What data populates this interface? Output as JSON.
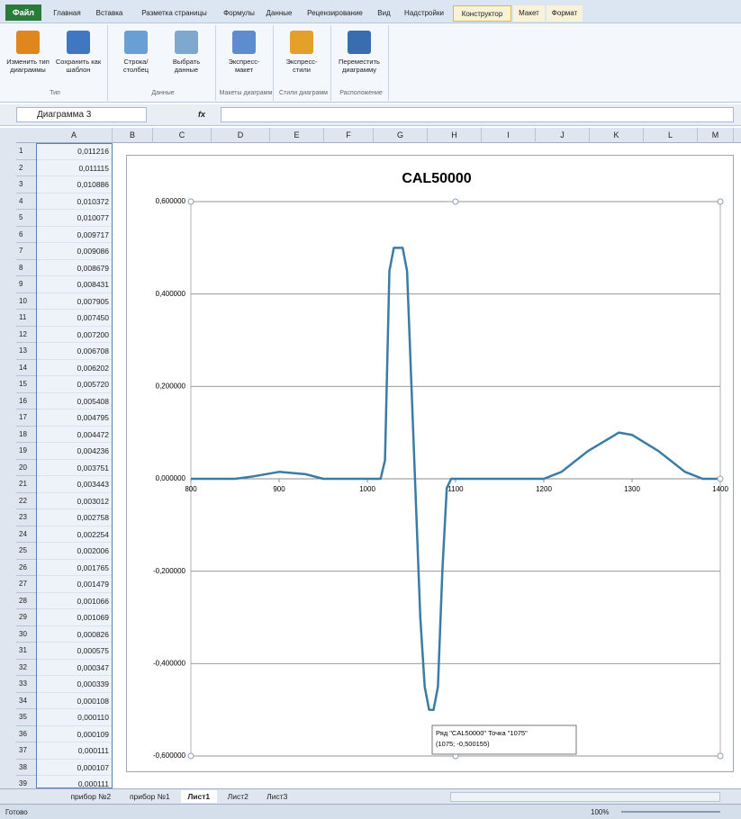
{
  "ribbon": {
    "file_tab": "Файл",
    "tabs": [
      "Главная",
      "Вставка",
      "Разметка страницы",
      "Формулы",
      "Данные",
      "Рецензирование",
      "Вид",
      "Надстройки",
      "Конструктор",
      "Макет",
      "Формат"
    ],
    "groups": [
      {
        "label": "Тип",
        "buttons": [
          "Изменить тип диаграммы",
          "Сохранить как шаблон"
        ]
      },
      {
        "label": "Данные",
        "buttons": [
          "Строка/столбец",
          "Выбрать данные"
        ]
      },
      {
        "label": "Макеты диаграмм",
        "buttons": [
          "Экспресс-макет"
        ]
      },
      {
        "label": "Стили диаграмм",
        "buttons": [
          "Экспресс-стили"
        ]
      },
      {
        "label": "Расположение",
        "buttons": [
          "Переместить диаграмму"
        ]
      }
    ]
  },
  "name_box": "Диаграмма 3",
  "formula_icon": "fx",
  "columns": [
    "A",
    "B",
    "C",
    "D",
    "E",
    "F",
    "G",
    "H",
    "I",
    "J",
    "K",
    "L",
    "M"
  ],
  "row_numbers": [
    1,
    2,
    3,
    4,
    5,
    6,
    7,
    8,
    9,
    10,
    11,
    12,
    13,
    14,
    15,
    16,
    17,
    18,
    19,
    20,
    21,
    22,
    23,
    24,
    25,
    26,
    27,
    28,
    29,
    30,
    31,
    32,
    33,
    34,
    35,
    36,
    37,
    38,
    39
  ],
  "column_a": [
    "0,011216",
    "0,011115",
    "0,010886",
    "0,010372",
    "0,010077",
    "0,009717",
    "0,009086",
    "0,008679",
    "0,008431",
    "0,007905",
    "0,007450",
    "0,007200",
    "0,006708",
    "0,006202",
    "0,005720",
    "0,005408",
    "0,004795",
    "0,004472",
    "0,004236",
    "0,003751",
    "0,003443",
    "0,003012",
    "0,002758",
    "0,002254",
    "0,002006",
    "0,001765",
    "0,001479",
    "0,001066",
    "0,001069",
    "0,000826",
    "0,000575",
    "0,000347",
    "0,000339",
    "0,000108",
    "0,000110",
    "0,000109",
    "0,000111",
    "0,000107",
    "0,000111"
  ],
  "chart_data": {
    "type": "line",
    "title": "CAL50000",
    "x": [
      800,
      850,
      870,
      900,
      930,
      950,
      1000,
      1015,
      1020,
      1025,
      1030,
      1040,
      1045,
      1050,
      1060,
      1065,
      1070,
      1075,
      1080,
      1085,
      1090,
      1095,
      1100,
      1150,
      1200,
      1220,
      1250,
      1285,
      1300,
      1330,
      1360,
      1380,
      1400
    ],
    "series": [
      {
        "name": "CAL50000",
        "color": "#3a7ca5",
        "values": [
          0,
          0,
          0.005,
          0.015,
          0.01,
          0,
          0,
          0,
          0.04,
          0.45,
          0.5,
          0.5,
          0.45,
          0.2,
          -0.3,
          -0.45,
          -0.5,
          -0.500155,
          -0.45,
          -0.2,
          -0.02,
          0,
          0,
          0,
          0,
          0.015,
          0.06,
          0.1,
          0.095,
          0.06,
          0.015,
          0,
          0
        ]
      }
    ],
    "xlim": [
      800,
      1400
    ],
    "xticks": [
      800,
      900,
      1000,
      1100,
      1200,
      1300,
      1400
    ],
    "ylim": [
      -0.6,
      0.6
    ],
    "yticks": [
      {
        "value": -0.6,
        "label": "-0,600000"
      },
      {
        "value": -0.4,
        "label": "-0,400000"
      },
      {
        "value": -0.2,
        "label": "-0,200000"
      },
      {
        "value": 0,
        "label": "0,000000"
      },
      {
        "value": 0.2,
        "label": "0,200000"
      },
      {
        "value": 0.4,
        "label": "0,400000"
      },
      {
        "value": 0.6,
        "label": "0,600000"
      }
    ],
    "grid": true,
    "tooltip": [
      "Ряд \"CAL50000\" Точка \"1075\"",
      "(1075; -0,500155)"
    ]
  },
  "sheet_tabs": [
    "прибор №2",
    "прибор №1",
    "Лист1",
    "Лист2",
    "Лист3"
  ],
  "status": {
    "ready": "Готово",
    "zoom": "100%"
  }
}
